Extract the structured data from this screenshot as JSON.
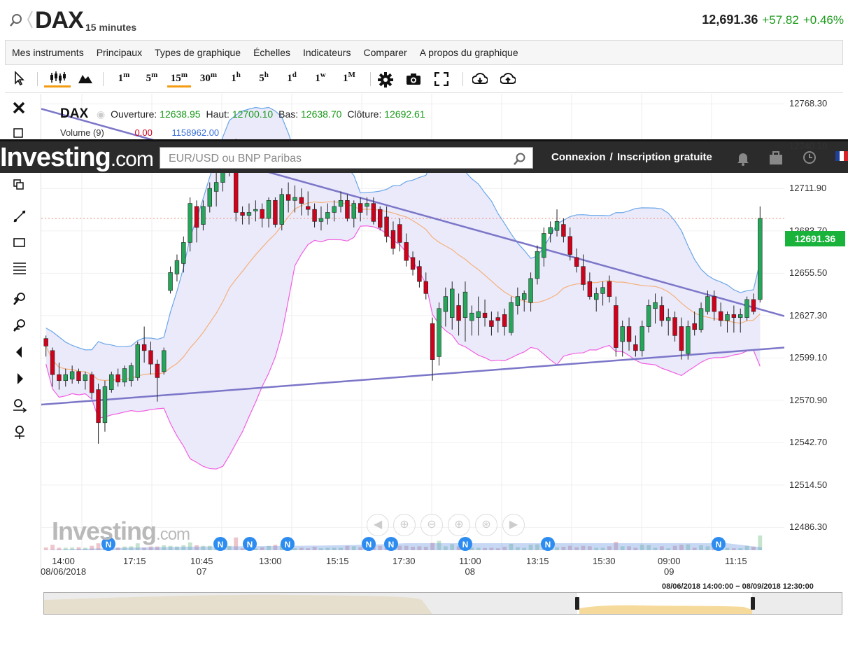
{
  "header": {
    "symbol": "DAX",
    "interval": "15 minutes",
    "last_price": "12,691.36",
    "change": "+57.82",
    "change_pct": "+0.46%"
  },
  "menu": [
    "Mes instruments",
    "Principaux",
    "Types de graphique",
    "Échelles",
    "Indicateurs",
    "Comparer",
    "A propos du graphique"
  ],
  "timeframes": [
    {
      "n": "1",
      "u": "m"
    },
    {
      "n": "5",
      "u": "m"
    },
    {
      "n": "15",
      "u": "m"
    },
    {
      "n": "30",
      "u": "m"
    },
    {
      "n": "1",
      "u": "h"
    },
    {
      "n": "5",
      "u": "h"
    },
    {
      "n": "1",
      "u": "d"
    },
    {
      "n": "1",
      "u": "w"
    },
    {
      "n": "1",
      "u": "M"
    }
  ],
  "legend": {
    "symbol": "DAX",
    "open_label": "Ouverture:",
    "open": "12638.95",
    "high_label": "Haut:",
    "high": "12700.10",
    "low_label": "Bas:",
    "low": "12638.70",
    "close_label": "Clôture:",
    "close": "12692.61",
    "volume_label": "Volume (9)",
    "volume_value": "0.00",
    "volume_extra": "1158962.00"
  },
  "investing_bar": {
    "logo_main": "Investing",
    "logo_suffix": ".com",
    "search_placeholder": "EUR/USD ou BNP Paribas",
    "login": "Connexion",
    "separator": "/",
    "signup": "Inscription gratuite"
  },
  "watermark": {
    "main": "Investing",
    "suffix": ".com"
  },
  "price_tag": "12691.36",
  "navigator_range": "08/06/2018 14:00:00 − 08/09/2018 12:30:00",
  "colors": {
    "up": "#26a65b",
    "down": "#d0021b",
    "band_fill": "#e9e8fb",
    "upper_band": "#6aa6e8",
    "lower_band": "#f25ee0",
    "middle": "#f4b07a",
    "trend": "#7b76c8",
    "price_tag": "#19b23b"
  },
  "chart_data": {
    "type": "candlestick",
    "y_ticks": [
      "12768.30",
      "12740.10",
      "12711.90",
      "12683.70",
      "12655.50",
      "12627.30",
      "12599.10",
      "12570.90",
      "12542.70",
      "12514.50",
      "12486.30"
    ],
    "y_range": [
      12472,
      12775
    ],
    "x_ticks": [
      {
        "t": "14:00",
        "d": "08/06/2018"
      },
      {
        "t": "17:15",
        "d": ""
      },
      {
        "t": "10:45",
        "d": "07"
      },
      {
        "t": "13:00",
        "d": ""
      },
      {
        "t": "15:15",
        "d": ""
      },
      {
        "t": "17:30",
        "d": ""
      },
      {
        "t": "11:00",
        "d": "08"
      },
      {
        "t": "13:15",
        "d": ""
      },
      {
        "t": "15:30",
        "d": ""
      },
      {
        "t": "09:00",
        "d": "09"
      },
      {
        "t": "11:15",
        "d": ""
      }
    ],
    "candles": [
      [
        12612,
        12614,
        12600,
        12607
      ],
      [
        12604,
        12606,
        12580,
        12588
      ],
      [
        12588,
        12596,
        12578,
        12584
      ],
      [
        12584,
        12592,
        12580,
        12588
      ],
      [
        12585,
        12594,
        12582,
        12590
      ],
      [
        12590,
        12592,
        12582,
        12584
      ],
      [
        12584,
        12590,
        12578,
        12588
      ],
      [
        12588,
        12590,
        12572,
        12576
      ],
      [
        12578,
        12582,
        12542,
        12556
      ],
      [
        12556,
        12584,
        12550,
        12580
      ],
      [
        12578,
        12590,
        12576,
        12588
      ],
      [
        12588,
        12592,
        12580,
        12583
      ],
      [
        12583,
        12594,
        12580,
        12592
      ],
      [
        12584,
        12596,
        12580,
        12594
      ],
      [
        12586,
        12610,
        12584,
        12608
      ],
      [
        12608,
        12620,
        12596,
        12604
      ],
      [
        12604,
        12610,
        12588,
        12595
      ],
      [
        12595,
        12598,
        12570,
        12586
      ],
      [
        12590,
        12606,
        12588,
        12604
      ],
      [
        12644,
        12660,
        12642,
        12656
      ],
      [
        12655,
        12668,
        12650,
        12664
      ],
      [
        12662,
        12680,
        12656,
        12676
      ],
      [
        12676,
        12706,
        12670,
        12702
      ],
      [
        12700,
        12704,
        12676,
        12686
      ],
      [
        12688,
        12704,
        12684,
        12700
      ],
      [
        12700,
        12716,
        12696,
        12712
      ],
      [
        12710,
        12724,
        12700,
        12716
      ],
      [
        12716,
        12735,
        12710,
        12730
      ],
      [
        12726,
        12742,
        12720,
        12738
      ],
      [
        12742,
        12745,
        12690,
        12696
      ],
      [
        12696,
        12700,
        12688,
        12694
      ],
      [
        12694,
        12702,
        12688,
        12696
      ],
      [
        12697,
        12704,
        12690,
        12698
      ],
      [
        12698,
        12702,
        12686,
        12692
      ],
      [
        12692,
        12706,
        12686,
        12704
      ],
      [
        12704,
        12706,
        12686,
        12688
      ],
      [
        12688,
        12712,
        12684,
        12708
      ],
      [
        12708,
        12716,
        12696,
        12704
      ],
      [
        12704,
        12714,
        12696,
        12706
      ],
      [
        12706,
        12712,
        12694,
        12702
      ],
      [
        12700,
        12710,
        12694,
        12698
      ],
      [
        12698,
        12702,
        12686,
        12690
      ],
      [
        12690,
        12700,
        12684,
        12692
      ],
      [
        12692,
        12702,
        12688,
        12696
      ],
      [
        12696,
        12704,
        12690,
        12700
      ],
      [
        12700,
        12710,
        12696,
        12704
      ],
      [
        12704,
        12708,
        12690,
        12692
      ],
      [
        12692,
        12704,
        12686,
        12702
      ],
      [
        12702,
        12706,
        12690,
        12696
      ],
      [
        12700,
        12706,
        12694,
        12702
      ],
      [
        12702,
        12706,
        12688,
        12690
      ],
      [
        12698,
        12700,
        12684,
        12686
      ],
      [
        12693,
        12700,
        12676,
        12680
      ],
      [
        12684,
        12690,
        12668,
        12672
      ],
      [
        12688,
        12692,
        12670,
        12676
      ],
      [
        12676,
        12682,
        12660,
        12664
      ],
      [
        12666,
        12670,
        12654,
        12658
      ],
      [
        12660,
        12664,
        12646,
        12650
      ],
      [
        12650,
        12656,
        12638,
        12642
      ],
      [
        12622,
        12626,
        12584,
        12598
      ],
      [
        12600,
        12636,
        12594,
        12632
      ],
      [
        12630,
        12646,
        12620,
        12640
      ],
      [
        12626,
        12650,
        12618,
        12645
      ],
      [
        12634,
        12642,
        12614,
        12624
      ],
      [
        12626,
        12650,
        12610,
        12643
      ],
      [
        12624,
        12634,
        12614,
        12629
      ],
      [
        12626,
        12640,
        12614,
        12630
      ],
      [
        12629,
        12638,
        12620,
        12626
      ],
      [
        12624,
        12630,
        12614,
        12620
      ],
      [
        12626,
        12630,
        12616,
        12624
      ],
      [
        12628,
        12632,
        12614,
        12620
      ],
      [
        12616,
        12640,
        12614,
        12636
      ],
      [
        12634,
        12646,
        12628,
        12640
      ],
      [
        12638,
        12644,
        12630,
        12642
      ],
      [
        12636,
        12656,
        12630,
        12652
      ],
      [
        12652,
        12674,
        12648,
        12670
      ],
      [
        12666,
        12686,
        12660,
        12682
      ],
      [
        12682,
        12690,
        12676,
        12686
      ],
      [
        12684,
        12698,
        12680,
        12690
      ],
      [
        12688,
        12692,
        12676,
        12680
      ],
      [
        12680,
        12686,
        12664,
        12668
      ],
      [
        12666,
        12672,
        12656,
        12660
      ],
      [
        12660,
        12668,
        12644,
        12648
      ],
      [
        12650,
        12656,
        12638,
        12640
      ],
      [
        12638,
        12646,
        12630,
        12642
      ],
      [
        12642,
        12650,
        12634,
        12646
      ],
      [
        12650,
        12654,
        12636,
        12640
      ],
      [
        12634,
        12640,
        12600,
        12606
      ],
      [
        12610,
        12624,
        12600,
        12620
      ],
      [
        12620,
        12626,
        12604,
        12610
      ],
      [
        12608,
        12614,
        12600,
        12604
      ],
      [
        12604,
        12624,
        12600,
        12620
      ],
      [
        12620,
        12638,
        12616,
        12634
      ],
      [
        12632,
        12642,
        12622,
        12636
      ],
      [
        12634,
        12640,
        12620,
        12624
      ],
      [
        12624,
        12632,
        12614,
        12626
      ],
      [
        12626,
        12630,
        12610,
        12614
      ],
      [
        12620,
        12626,
        12598,
        12604
      ],
      [
        12602,
        12624,
        12598,
        12620
      ],
      [
        12622,
        12630,
        12614,
        12618
      ],
      [
        12618,
        12636,
        12616,
        12632
      ],
      [
        12630,
        12644,
        12628,
        12640
      ],
      [
        12640,
        12644,
        12624,
        12630
      ],
      [
        12630,
        12636,
        12620,
        12624
      ],
      [
        12624,
        12630,
        12616,
        12628
      ],
      [
        12628,
        12634,
        12616,
        12626
      ],
      [
        12626,
        12632,
        12616,
        12628
      ],
      [
        12626,
        12640,
        12624,
        12638
      ],
      [
        12638,
        12642,
        12628,
        12630
      ],
      [
        12638,
        12700,
        12636,
        12692
      ]
    ],
    "lower_trendline": [
      [
        0,
        12568
      ],
      [
        1,
        12606
      ]
    ],
    "upper_trendline": [
      [
        0,
        12765
      ],
      [
        1,
        12627
      ]
    ]
  }
}
